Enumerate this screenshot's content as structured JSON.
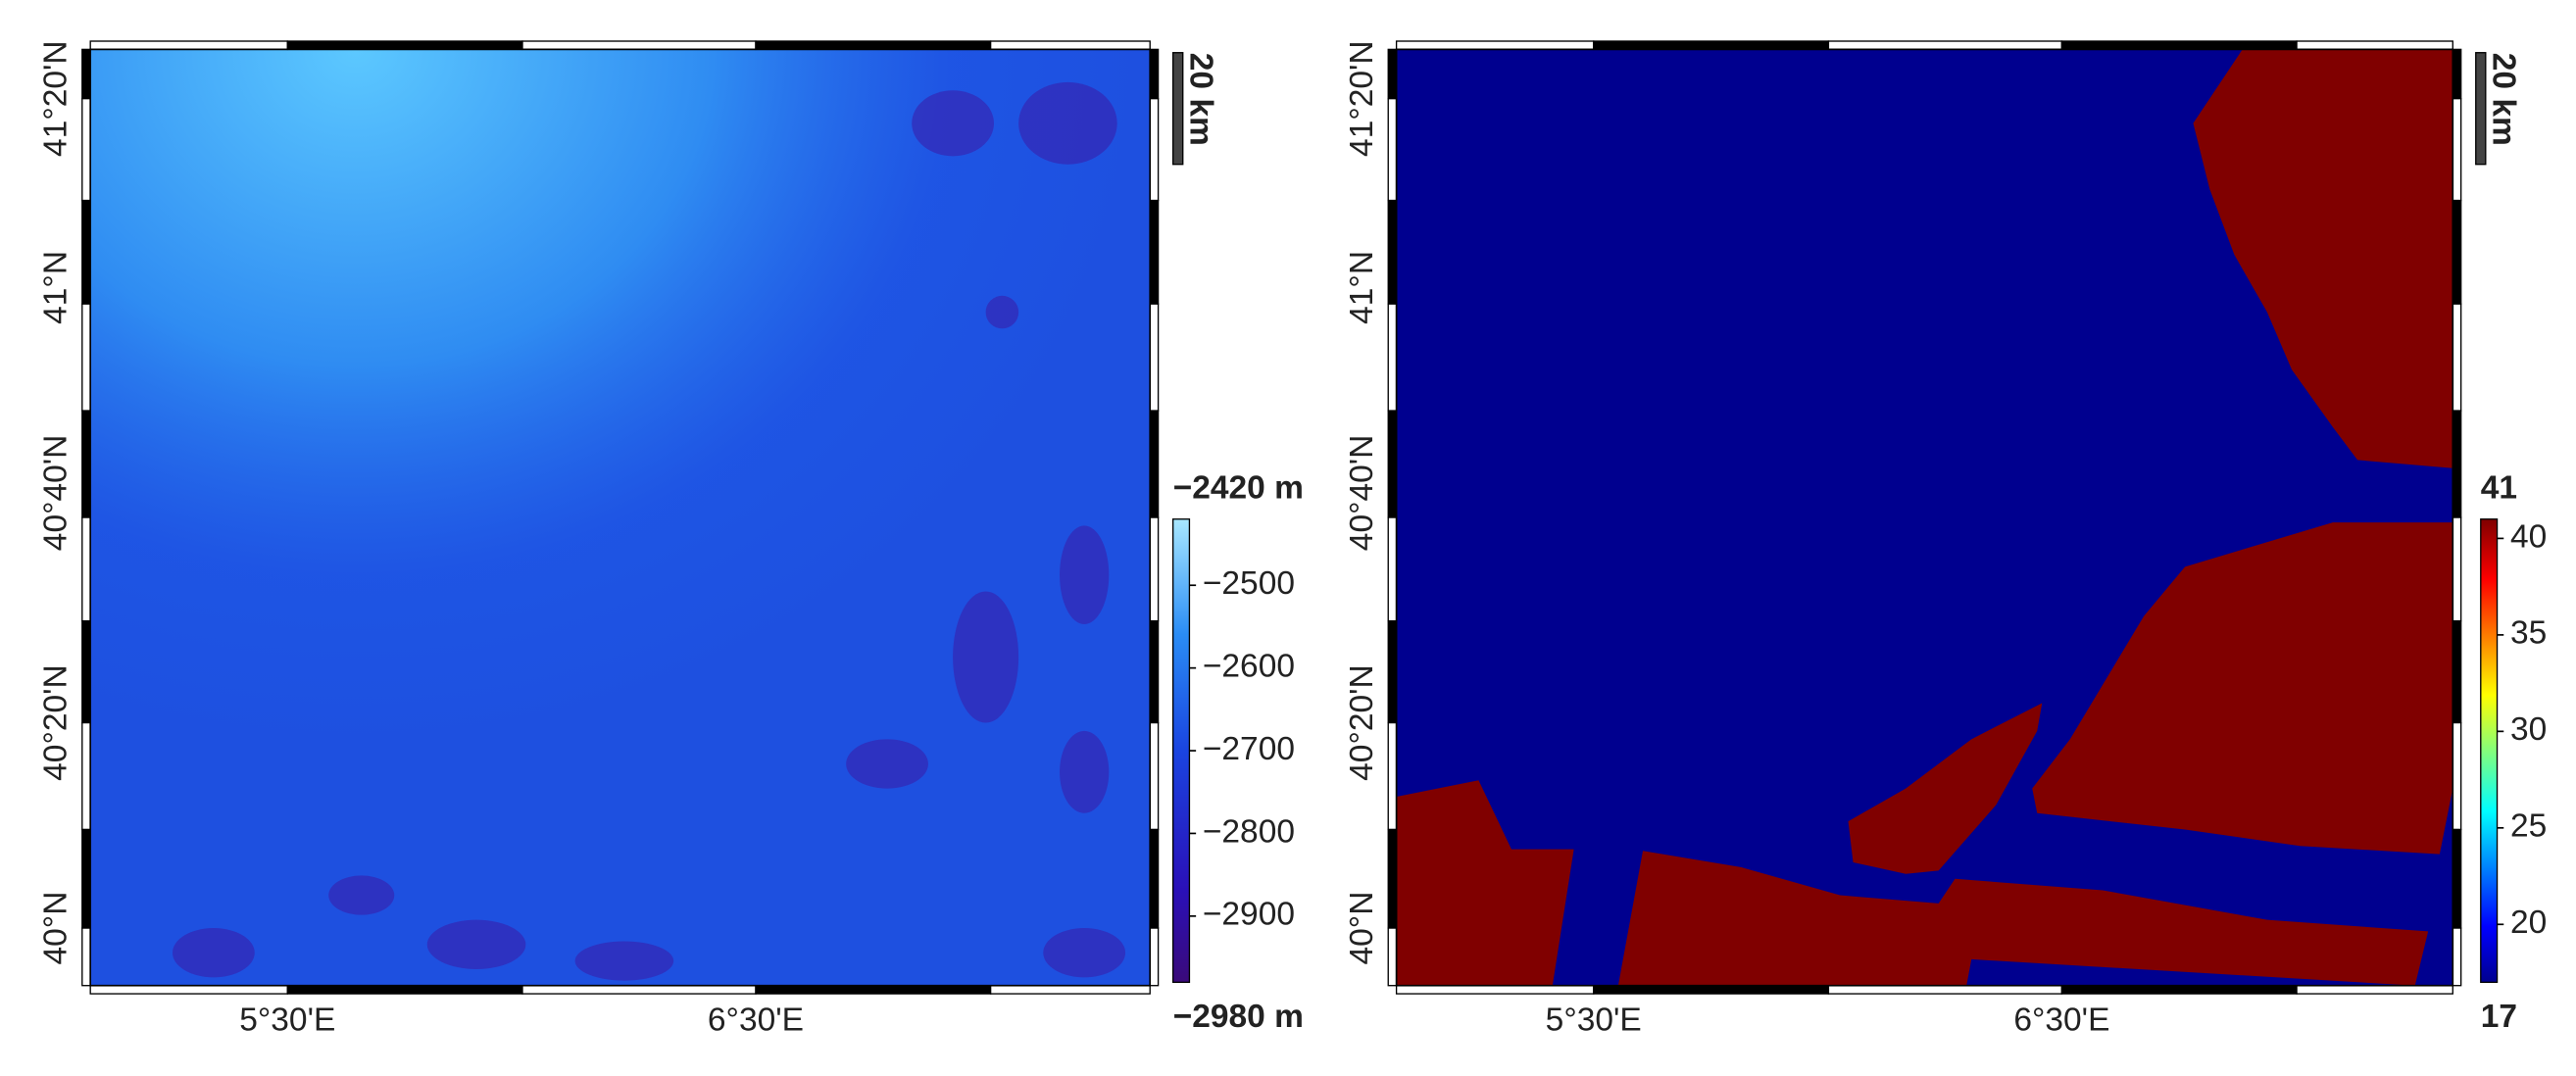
{
  "panels": [
    {
      "x_labels": [
        "5°30'E",
        "6°30'E"
      ],
      "y_labels": [
        "40°N",
        "40°20'N",
        "40°40'N",
        "41°N",
        "41°20'N"
      ],
      "scale_bar": "20 km",
      "colorbar": {
        "lim": [
          {
            "value": -2980,
            "label": "−2980 m"
          },
          {
            "value": -2420,
            "label": "−2420 m"
          }
        ],
        "ticks": [
          {
            "value": -2900,
            "label": "−2900"
          },
          {
            "value": -2800,
            "label": "−2800"
          },
          {
            "value": -2700,
            "label": "−2700"
          },
          {
            "value": -2600,
            "label": "−2600"
          },
          {
            "value": -2500,
            "label": "−2500"
          }
        ]
      }
    },
    {
      "x_labels": [
        "5°30'E",
        "6°30'E"
      ],
      "y_labels": [
        "40°N",
        "40°20'N",
        "40°40'N",
        "41°N",
        "41°20'N"
      ],
      "scale_bar": "20 km",
      "colorbar": {
        "lim": [
          17,
          41
        ],
        "ticks": [
          20,
          25,
          30,
          35,
          40
        ]
      }
    }
  ]
}
